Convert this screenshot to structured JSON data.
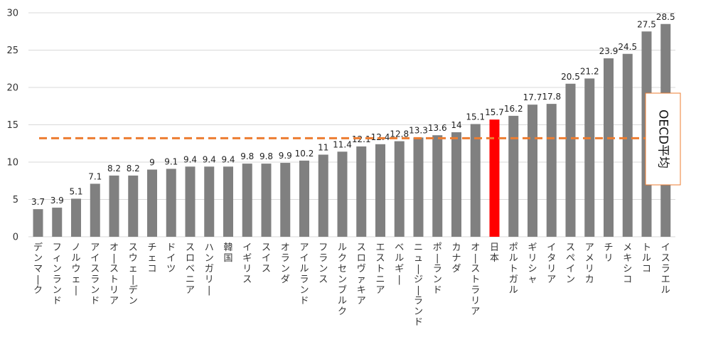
{
  "chart_data": {
    "type": "bar",
    "categories": [
      "デンマーク",
      "フィンランド",
      "ノルウェー",
      "アイスランド",
      "オーストリア",
      "スウェーデン",
      "チェコ",
      "ドイツ",
      "スロベニア",
      "ハンガリー",
      "韓国",
      "イギリス",
      "スイス",
      "オランダ",
      "アイルランド",
      "フランス",
      "ルクセンブルク",
      "スロヴァキア",
      "エストニア",
      "ベルギー",
      "ニュージーランド",
      "ポーランド",
      "カナダ",
      "オーストラリア",
      "日本",
      "ポルトガル",
      "ギリシャ",
      "イタリア",
      "スペイン",
      "アメリカ",
      "チリ",
      "メキシコ",
      "トルコ",
      "イスラエル"
    ],
    "values": [
      3.7,
      3.9,
      5.1,
      7.1,
      8.2,
      8.2,
      9,
      9.1,
      9.4,
      9.4,
      9.4,
      9.8,
      9.8,
      9.9,
      10.2,
      11,
      11.4,
      12.1,
      12.4,
      12.8,
      13.3,
      13.6,
      14,
      15.1,
      15.7,
      16.2,
      17.7,
      17.8,
      20.5,
      21.2,
      23.9,
      24.5,
      27.5,
      28.5
    ],
    "highlight_category": "日本",
    "colors": {
      "bar": "#808080",
      "highlight": "#ff0000",
      "reference": "#ed7d31",
      "grid": "#d9d9d9"
    },
    "ylim": [
      0,
      30
    ],
    "yticks": [
      0,
      5,
      10,
      15,
      20,
      25,
      30
    ],
    "reference_line": {
      "label": "OECD平均",
      "value": 13.2
    },
    "title": "",
    "xlabel": "",
    "ylabel": ""
  }
}
